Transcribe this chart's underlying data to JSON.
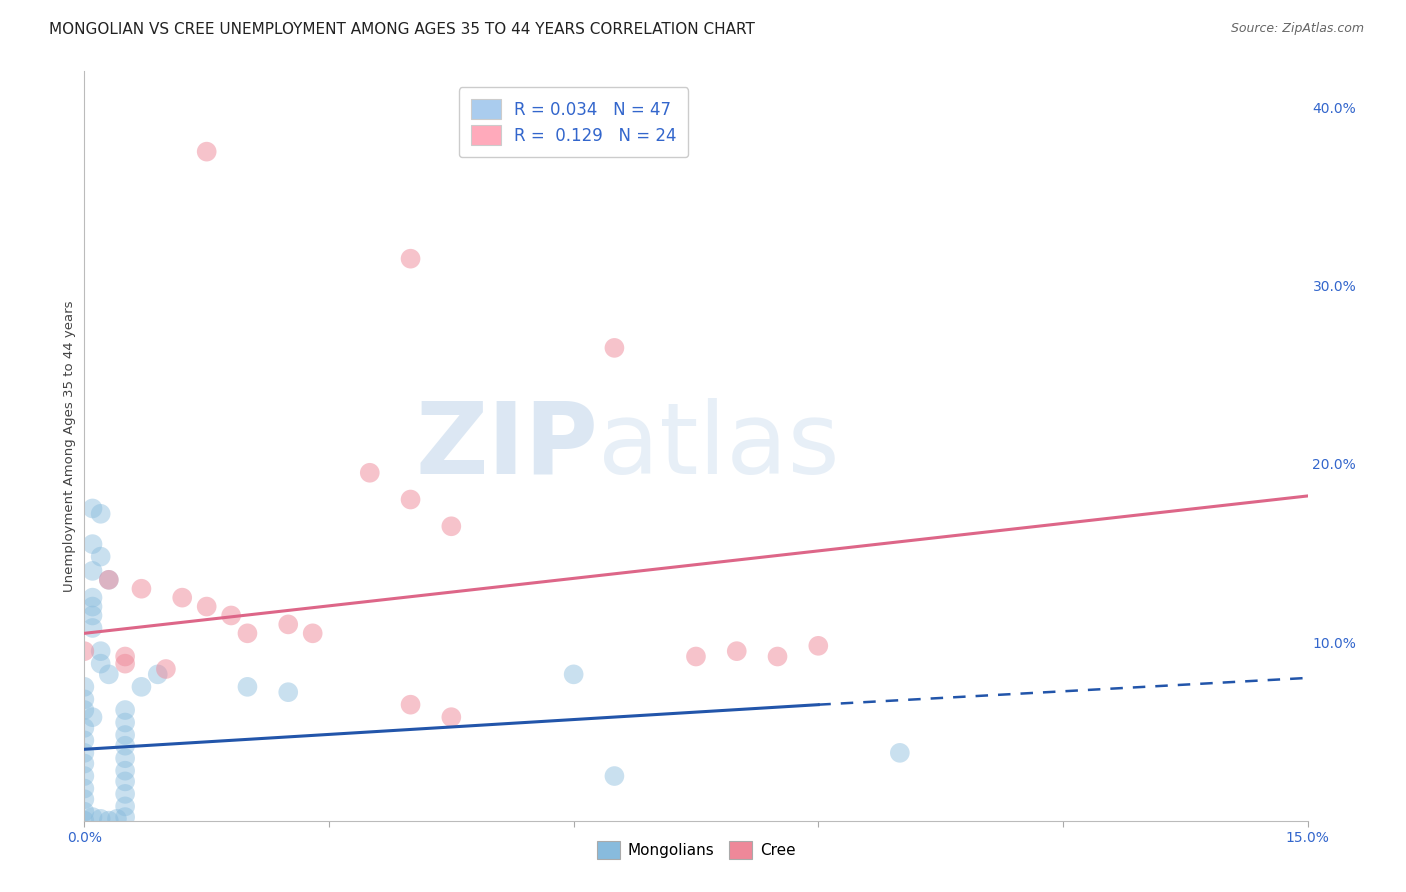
{
  "title": "MONGOLIAN VS CREE UNEMPLOYMENT AMONG AGES 35 TO 44 YEARS CORRELATION CHART",
  "source": "Source: ZipAtlas.com",
  "ylabel": "Unemployment Among Ages 35 to 44 years",
  "xlim": [
    0.0,
    0.15
  ],
  "ylim": [
    0.0,
    0.42
  ],
  "xticks": [
    0.0,
    0.03,
    0.06,
    0.09,
    0.12,
    0.15
  ],
  "xtick_labels": [
    "0.0%",
    "",
    "",
    "",
    "",
    "15.0%"
  ],
  "yticks_right": [
    0.0,
    0.1,
    0.2,
    0.3,
    0.4
  ],
  "ytick_labels_right": [
    "",
    "10.0%",
    "20.0%",
    "30.0%",
    "40.0%"
  ],
  "legend_entries": [
    {
      "label": "R = 0.034   N = 47",
      "color": "#aaccee"
    },
    {
      "label": "R =  0.129   N = 24",
      "color": "#ffaabb"
    }
  ],
  "mongolian_scatter": [
    [
      0.001,
      0.175
    ],
    [
      0.002,
      0.172
    ],
    [
      0.001,
      0.155
    ],
    [
      0.002,
      0.148
    ],
    [
      0.001,
      0.14
    ],
    [
      0.003,
      0.135
    ],
    [
      0.001,
      0.125
    ],
    [
      0.001,
      0.12
    ],
    [
      0.001,
      0.115
    ],
    [
      0.001,
      0.108
    ],
    [
      0.002,
      0.095
    ],
    [
      0.002,
      0.088
    ],
    [
      0.003,
      0.082
    ],
    [
      0.0,
      0.075
    ],
    [
      0.0,
      0.068
    ],
    [
      0.0,
      0.062
    ],
    [
      0.001,
      0.058
    ],
    [
      0.0,
      0.052
    ],
    [
      0.0,
      0.045
    ],
    [
      0.0,
      0.038
    ],
    [
      0.0,
      0.032
    ],
    [
      0.0,
      0.025
    ],
    [
      0.0,
      0.018
    ],
    [
      0.0,
      0.012
    ],
    [
      0.0,
      0.005
    ],
    [
      0.0,
      0.0
    ],
    [
      0.001,
      0.002
    ],
    [
      0.002,
      0.001
    ],
    [
      0.003,
      0.0
    ],
    [
      0.004,
      0.001
    ],
    [
      0.005,
      0.002
    ],
    [
      0.005,
      0.008
    ],
    [
      0.005,
      0.015
    ],
    [
      0.005,
      0.022
    ],
    [
      0.005,
      0.028
    ],
    [
      0.005,
      0.035
    ],
    [
      0.005,
      0.042
    ],
    [
      0.005,
      0.048
    ],
    [
      0.005,
      0.055
    ],
    [
      0.005,
      0.062
    ],
    [
      0.007,
      0.075
    ],
    [
      0.009,
      0.082
    ],
    [
      0.02,
      0.075
    ],
    [
      0.025,
      0.072
    ],
    [
      0.06,
      0.082
    ],
    [
      0.065,
      0.025
    ],
    [
      0.1,
      0.038
    ]
  ],
  "cree_scatter": [
    [
      0.015,
      0.375
    ],
    [
      0.04,
      0.315
    ],
    [
      0.065,
      0.265
    ],
    [
      0.035,
      0.195
    ],
    [
      0.04,
      0.18
    ],
    [
      0.045,
      0.165
    ],
    [
      0.003,
      0.135
    ],
    [
      0.007,
      0.13
    ],
    [
      0.012,
      0.125
    ],
    [
      0.015,
      0.12
    ],
    [
      0.018,
      0.115
    ],
    [
      0.025,
      0.11
    ],
    [
      0.02,
      0.105
    ],
    [
      0.028,
      0.105
    ],
    [
      0.0,
      0.095
    ],
    [
      0.005,
      0.092
    ],
    [
      0.005,
      0.088
    ],
    [
      0.01,
      0.085
    ],
    [
      0.08,
      0.095
    ],
    [
      0.09,
      0.098
    ],
    [
      0.04,
      0.065
    ],
    [
      0.045,
      0.058
    ],
    [
      0.075,
      0.092
    ],
    [
      0.085,
      0.092
    ]
  ],
  "mongolian_line_solid": {
    "x0": 0.0,
    "x1": 0.09,
    "y0": 0.04,
    "y1": 0.065
  },
  "mongolian_line_dash": {
    "x0": 0.09,
    "x1": 0.15,
    "y0": 0.065,
    "y1": 0.08
  },
  "cree_line_solid": {
    "x0": 0.0,
    "x1": 0.15,
    "y0": 0.105,
    "y1": 0.182
  },
  "mongolian_color": "#88bbdd",
  "cree_color": "#ee8899",
  "mongolian_line_color": "#2255aa",
  "cree_line_color": "#dd6688",
  "watermark_zip": "ZIP",
  "watermark_atlas": "atlas",
  "background_color": "#ffffff",
  "grid_color": "#ccddee",
  "title_fontsize": 11,
  "axis_label_fontsize": 9.5,
  "tick_fontsize": 10,
  "legend_fontsize": 12
}
